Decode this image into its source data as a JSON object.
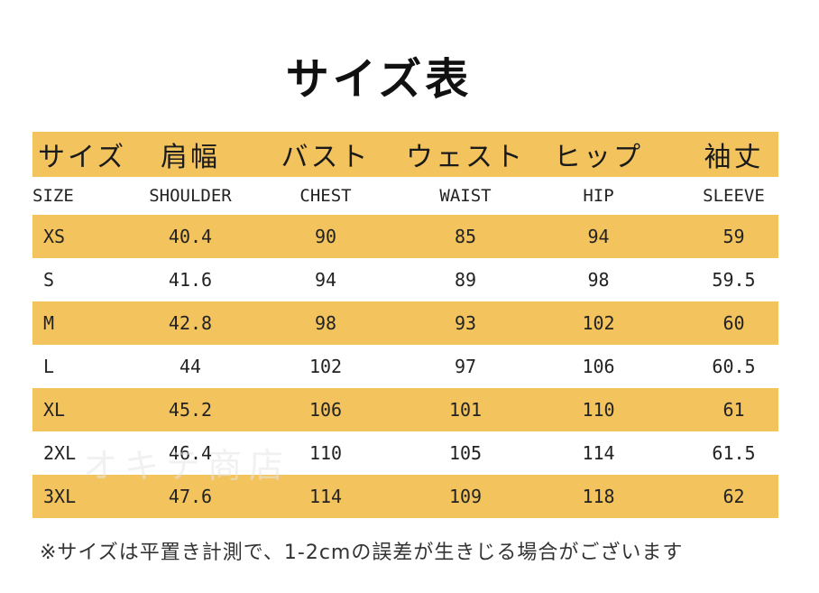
{
  "title": "サイズ表",
  "header_jp": [
    "サイズ",
    "肩幅",
    "バスト",
    "ウェスト",
    "ヒップ",
    "袖丈"
  ],
  "header_en": [
    "SIZE",
    "SHOULDER",
    "CHEST",
    "WAIST",
    "HIP",
    "SLEEVE"
  ],
  "rows": [
    [
      "XS",
      "40.4",
      "90",
      "85",
      "94",
      "59"
    ],
    [
      "S",
      "41.6",
      "94",
      "89",
      "98",
      "59.5"
    ],
    [
      "M",
      "42.8",
      "98",
      "93",
      "102",
      "60"
    ],
    [
      "L",
      "44",
      "102",
      "97",
      "106",
      "60.5"
    ],
    [
      "XL",
      "45.2",
      "106",
      "101",
      "110",
      "61"
    ],
    [
      "2XL",
      "46.4",
      "110",
      "105",
      "114",
      "61.5"
    ],
    [
      "3XL",
      "47.6",
      "114",
      "109",
      "118",
      "62"
    ]
  ],
  "watermark": "オキテ商店",
  "note": "※サイズは平置き計測で、1-2cmの誤差が生きじる場合がございます",
  "colors": {
    "band": "#f3c45d",
    "background": "#ffffff",
    "text": "#1a1a1a"
  }
}
